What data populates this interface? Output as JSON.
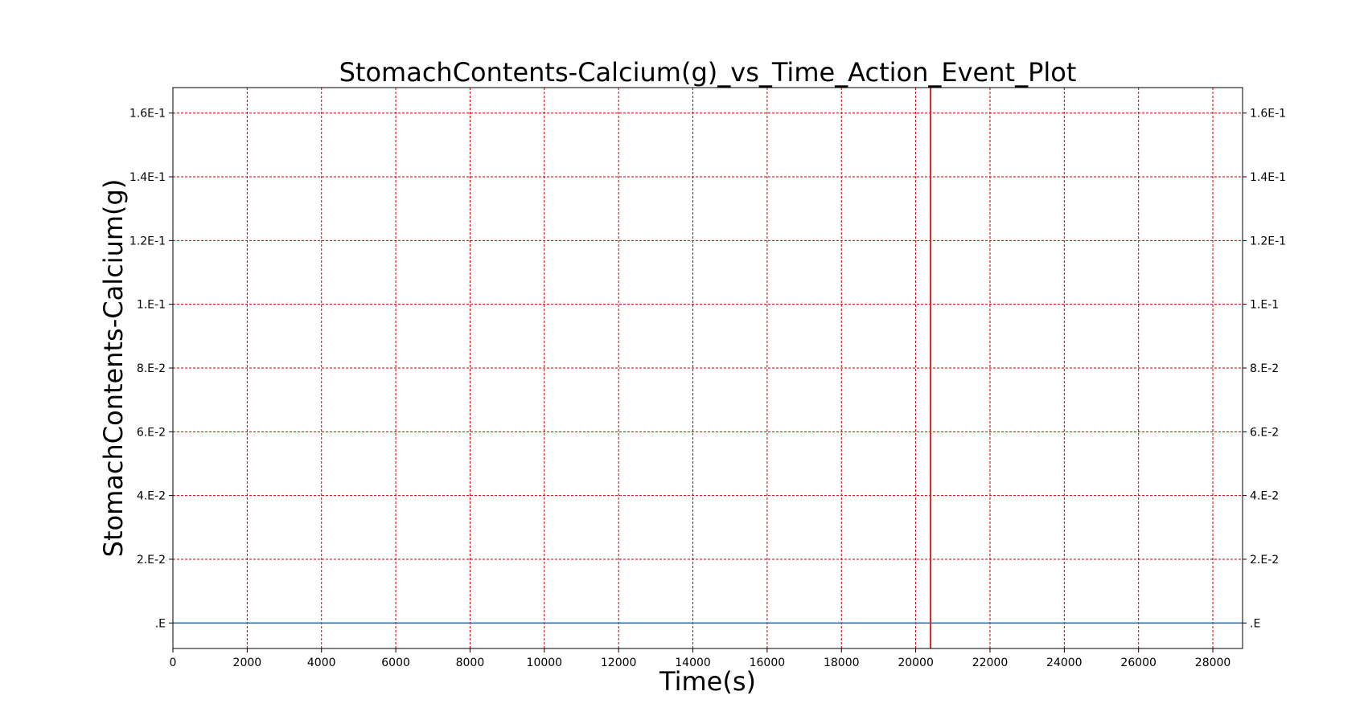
{
  "chart_data": {
    "type": "line",
    "title": "StomachContents-Calcium(g)_vs_Time_Action_Event_Plot",
    "xlabel": "Time(s)",
    "ylabel": "StomachContents-Calcium(g)",
    "xlim": [
      0,
      28800
    ],
    "ylim": [
      -0.008,
      0.168
    ],
    "x_ticks": [
      0,
      2000,
      4000,
      6000,
      8000,
      10000,
      12000,
      14000,
      16000,
      18000,
      20000,
      22000,
      24000,
      26000,
      28000
    ],
    "x_tick_labels": [
      "0",
      "2000",
      "4000",
      "6000",
      "8000",
      "10000",
      "12000",
      "14000",
      "16000",
      "18000",
      "20000",
      "22000",
      "24000",
      "26000",
      "28000"
    ],
    "y_ticks": [
      0,
      0.02,
      0.04,
      0.06,
      0.08,
      0.1,
      0.12,
      0.14,
      0.16
    ],
    "y_tick_labels": [
      ".E",
      "2.E-2",
      "4.E-2",
      "6.E-2",
      "8.E-2",
      "1.E-1",
      "1.2E-1",
      "1.4E-1",
      "1.6E-1"
    ],
    "grid": true,
    "right_axis_labels": true,
    "series": [
      {
        "x": [
          0,
          28800
        ],
        "y": [
          0,
          0
        ],
        "color": "#1f77b4"
      }
    ],
    "event_lines": [
      {
        "x": 20400,
        "color": "#d62728"
      }
    ],
    "grid_color": "#cc0000",
    "axis_color": "#000000"
  }
}
